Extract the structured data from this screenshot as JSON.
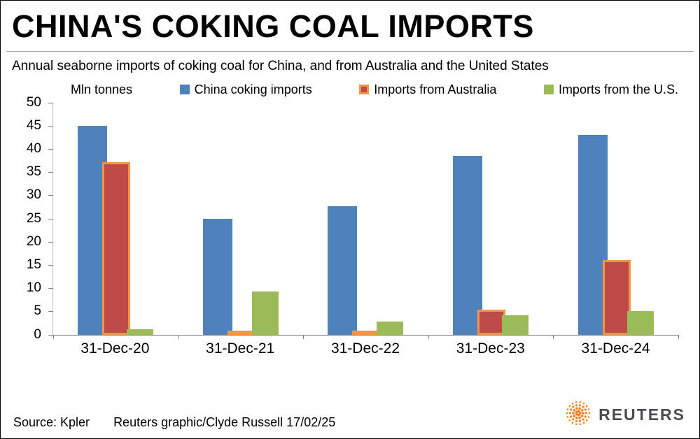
{
  "header": {
    "title": "CHINA'S COKING COAL IMPORTS"
  },
  "subtitle": "Annual seaborne imports of coking coal for China, and from Australia and the United States",
  "chart_data": {
    "type": "bar",
    "unit_label": "Mln tonnes",
    "title": "China's coking coal imports",
    "xlabel": "",
    "ylabel": "Mln tonnes",
    "ylim": [
      0,
      50
    ],
    "ytick_step": 5,
    "grid": false,
    "legend_position": "top",
    "categories": [
      "31-Dec-20",
      "31-Dec-21",
      "31-Dec-22",
      "31-Dec-23",
      "31-Dec-24"
    ],
    "series": [
      {
        "name": "China coking imports",
        "color": "#4f81bd",
        "values": [
          45.0,
          25.0,
          27.7,
          38.5,
          43.0
        ]
      },
      {
        "name": "Imports from Australia",
        "color": "#bf4b48",
        "border_color": "#f29646",
        "values": [
          37.2,
          0.6,
          0.5,
          5.4,
          16.0
        ]
      },
      {
        "name": "Imports from the U.S.",
        "color": "#9bbb59",
        "values": [
          1.2,
          9.2,
          2.8,
          4.2,
          5.0
        ]
      }
    ]
  },
  "footer": {
    "source": "Source: Kpler",
    "credit": "Reuters graphic/Clyde Russell 17/02/25",
    "brand": "REUTERS",
    "brand_color": "#f5801f"
  }
}
